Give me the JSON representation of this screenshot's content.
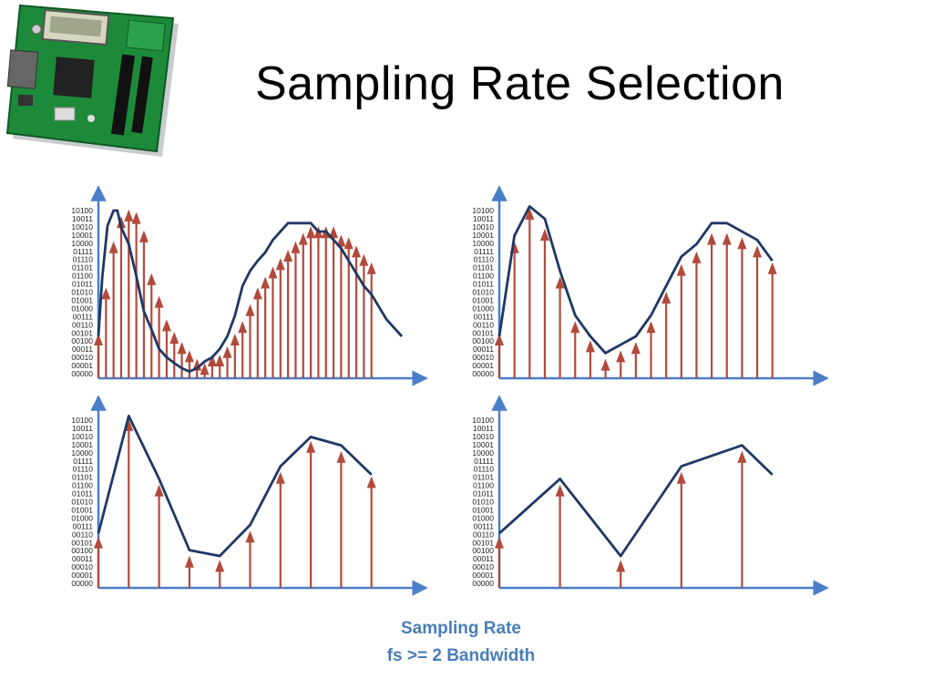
{
  "title": "Sampling Rate Selection",
  "caption": {
    "line1": "Sampling Rate",
    "line2": "fs >= 2 Bandwidth"
  },
  "image": {
    "subject": "microcontroller development board"
  },
  "colors": {
    "signal": "#1f3864",
    "sample": "#b24a3c",
    "axis": "#4a7ec8",
    "caption": "#4a7db8"
  },
  "y_ticks": [
    "00000",
    "00001",
    "00010",
    "00011",
    "00100",
    "00101",
    "00110",
    "00111",
    "01000",
    "01001",
    "01010",
    "01011",
    "01100",
    "01101",
    "01110",
    "01111",
    "10000",
    "10001",
    "10010",
    "10011",
    "10100"
  ],
  "chart_data": [
    {
      "type": "line",
      "panel": "top-left",
      "signal": [
        [
          0,
          5
        ],
        [
          0.5,
          12
        ],
        [
          1.2,
          18.2
        ],
        [
          2,
          20
        ],
        [
          2.5,
          20
        ],
        [
          3,
          18
        ],
        [
          4,
          16
        ],
        [
          5,
          12.2
        ],
        [
          6,
          8
        ],
        [
          7,
          5.8
        ],
        [
          8,
          3.5
        ],
        [
          9,
          2.5
        ],
        [
          10,
          1.8
        ],
        [
          11,
          1.2
        ],
        [
          12,
          0.8
        ],
        [
          13,
          1.2
        ],
        [
          14,
          2
        ],
        [
          15,
          2.5
        ],
        [
          16,
          3.5
        ],
        [
          17,
          5
        ],
        [
          18,
          7.5
        ],
        [
          19,
          11
        ],
        [
          20,
          12.8
        ],
        [
          21,
          14
        ],
        [
          22,
          15
        ],
        [
          23,
          16.5
        ],
        [
          24,
          17.5
        ],
        [
          25,
          18.5
        ],
        [
          26,
          18.5
        ],
        [
          27,
          18.5
        ],
        [
          28,
          18.5
        ],
        [
          29,
          17.5
        ],
        [
          30,
          17.5
        ],
        [
          31,
          16.5
        ],
        [
          32,
          15.5
        ],
        [
          33,
          14
        ],
        [
          34,
          12.5
        ],
        [
          35,
          11
        ],
        [
          36,
          10
        ],
        [
          37,
          8.5
        ],
        [
          38,
          7
        ],
        [
          39,
          6
        ],
        [
          40,
          5
        ]
      ],
      "samples": [
        [
          0,
          5
        ],
        [
          1,
          10.5
        ],
        [
          2,
          16
        ],
        [
          3,
          19
        ],
        [
          4,
          19.8
        ],
        [
          5,
          19.5
        ],
        [
          6,
          17.3
        ],
        [
          7,
          12.2
        ],
        [
          8,
          9.5
        ],
        [
          9,
          6.7
        ],
        [
          10,
          5.2
        ],
        [
          11,
          4
        ],
        [
          12,
          3
        ],
        [
          13,
          2
        ],
        [
          14,
          1.5
        ],
        [
          15,
          2.5
        ],
        [
          16,
          2.5
        ],
        [
          17,
          3.5
        ],
        [
          18,
          5
        ],
        [
          19,
          6.5
        ],
        [
          20,
          8.5
        ],
        [
          21,
          10.5
        ],
        [
          22,
          11.8
        ],
        [
          23,
          13
        ],
        [
          24,
          14
        ],
        [
          25,
          15
        ],
        [
          26,
          16
        ],
        [
          27,
          17
        ],
        [
          28,
          17.8
        ],
        [
          29,
          17.8
        ],
        [
          30,
          17.8
        ],
        [
          31,
          17.8
        ],
        [
          32,
          16.8
        ],
        [
          33,
          16.5
        ],
        [
          34,
          15.5
        ],
        [
          35,
          14.5
        ],
        [
          36,
          13.5
        ]
      ],
      "x_step": 1,
      "x_max": 40,
      "y_max": 20
    },
    {
      "type": "line",
      "panel": "top-right",
      "signal": [
        [
          0,
          5
        ],
        [
          2,
          17
        ],
        [
          4,
          20.5
        ],
        [
          6,
          19
        ],
        [
          8,
          12.8
        ],
        [
          10,
          7.5
        ],
        [
          12,
          5
        ],
        [
          14,
          3
        ],
        [
          16,
          4
        ],
        [
          18,
          5
        ],
        [
          20,
          7.5
        ],
        [
          22,
          11
        ],
        [
          24,
          14.5
        ],
        [
          26,
          16
        ],
        [
          28,
          18.5
        ],
        [
          30,
          18.5
        ],
        [
          32,
          17.5
        ],
        [
          34,
          16.5
        ],
        [
          36,
          14
        ]
      ],
      "samples": [
        [
          0,
          5
        ],
        [
          2,
          16
        ],
        [
          4,
          20
        ],
        [
          6,
          17.5
        ],
        [
          8,
          11.8
        ],
        [
          10,
          6.5
        ],
        [
          12,
          4.2
        ],
        [
          14,
          2
        ],
        [
          16,
          3
        ],
        [
          18,
          4
        ],
        [
          20,
          6.5
        ],
        [
          22,
          10
        ],
        [
          24,
          13.3
        ],
        [
          26,
          14.8
        ],
        [
          28,
          17
        ],
        [
          30,
          17
        ],
        [
          32,
          16.5
        ],
        [
          34,
          15.5
        ],
        [
          36,
          13.5
        ]
      ],
      "x_step": 2,
      "x_max": 40,
      "y_max": 20
    },
    {
      "type": "line",
      "panel": "bottom-left",
      "signal": [
        [
          0,
          6.5
        ],
        [
          4,
          20.5
        ],
        [
          8,
          13
        ],
        [
          12,
          4.5
        ],
        [
          16,
          3.8
        ],
        [
          20,
          7.5
        ],
        [
          24,
          14.5
        ],
        [
          28,
          18
        ],
        [
          32,
          17
        ],
        [
          36,
          13.5
        ]
      ],
      "samples": [
        [
          0,
          5.8
        ],
        [
          4,
          19.8
        ],
        [
          8,
          12
        ],
        [
          12,
          3.5
        ],
        [
          16,
          3
        ],
        [
          20,
          6.5
        ],
        [
          24,
          13.5
        ],
        [
          28,
          17.2
        ],
        [
          32,
          16
        ],
        [
          36,
          13
        ]
      ],
      "x_step": 4,
      "x_max": 40,
      "y_max": 20
    },
    {
      "type": "line",
      "panel": "bottom-right",
      "signal": [
        [
          0,
          6.5
        ],
        [
          8,
          13
        ],
        [
          16,
          3.8
        ],
        [
          24,
          14.5
        ],
        [
          32,
          17
        ],
        [
          36,
          13.5
        ]
      ],
      "samples": [
        [
          0,
          5.8
        ],
        [
          8,
          12
        ],
        [
          16,
          3
        ],
        [
          24,
          13.5
        ],
        [
          32,
          16
        ]
      ],
      "x_step": 8,
      "x_max": 40,
      "y_max": 20
    }
  ]
}
